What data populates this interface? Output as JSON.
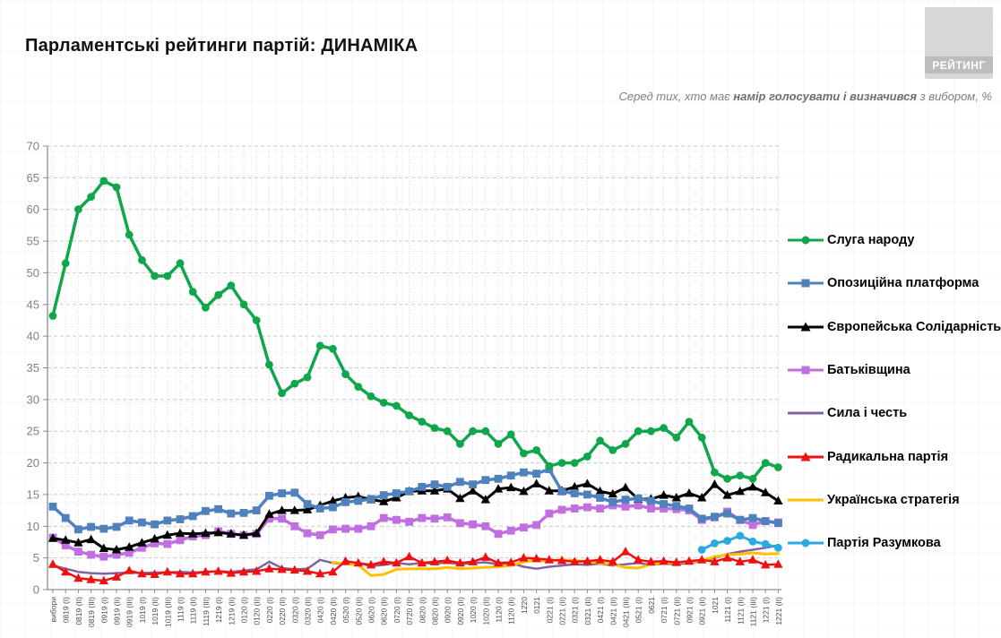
{
  "header": {
    "title": "Парламентські рейтинги партій: ДИНАМІКА",
    "subtitle_prefix": "Серед тих, хто має ",
    "subtitle_bold": "намір голосувати і визначився",
    "subtitle_suffix": " з вибором, %",
    "logo_text": "РЕЙТИНГ"
  },
  "chart_data": {
    "type": "line",
    "title": "Парламентські рейтинги партій: ДИНАМІКА",
    "subtitle": "Серед тих, хто має намір голосувати і визначився з вибором, %",
    "grid": true,
    "legend_position": "right",
    "y_axis": {
      "min": 0,
      "max": 70,
      "step": 5
    },
    "x": [
      "вибори",
      "0819 (I)",
      "0819 (II)",
      "0819 (III)",
      "0919 (I)",
      "0919 (II)",
      "0919 (III)",
      "1019 (I)",
      "1019 (II)",
      "1019 (III)",
      "1119 (I)",
      "1119 (II)",
      "1119 (III)",
      "1219 (I)",
      "1219 (II)",
      "0120 (I)",
      "0120 (II)",
      "0220 (I)",
      "0220 (II)",
      "0320 (I)",
      "0320 (II)",
      "0420 (I)",
      "0420 (II)",
      "0520 (I)",
      "0520 (II)",
      "0620 (I)",
      "0620 (II)",
      "0720 (I)",
      "0720 (II)",
      "0820 (I)",
      "0820 (II)",
      "0920 (I)",
      "0920 (II)",
      "1020 (I)",
      "1020 (II)",
      "1120 (I)",
      "1120 (II)",
      "1220",
      "0121",
      "0221 (I)",
      "0221 (II)",
      "0321 (I)",
      "0321 (II)",
      "0421 (I)",
      "0421 (II)",
      "0421 (III)",
      "0521 (I)",
      "0621",
      "0721 (I)",
      "0721 (II)",
      "0921 (I)",
      "0921 (II)",
      "1021",
      "1121 (I)",
      "1121 (II)",
      "1121 (III)",
      "1221 (I)",
      "1221 (II)"
    ],
    "series": [
      {
        "id": "sluga-narodu",
        "name": "Слуга народу",
        "color": "#0fa64c",
        "marker": "circle",
        "values": [
          43.2,
          51.5,
          60,
          62,
          64.5,
          63.5,
          56,
          52,
          49.5,
          49.5,
          51.5,
          47,
          44.5,
          46.5,
          48,
          45,
          42.5,
          35.5,
          31,
          32.5,
          33.5,
          38.5,
          38,
          34,
          32,
          30.5,
          29.5,
          29,
          27.5,
          26.5,
          25.5,
          25,
          23,
          25,
          25,
          23,
          24.5,
          21.5,
          22,
          19.5,
          20,
          20,
          21,
          23.5,
          22,
          23,
          25,
          25,
          25.5,
          24,
          26.5,
          24,
          18.5,
          17.5,
          18,
          17.5,
          20,
          19.3
        ]
      },
      {
        "id": "opozytsiina-platforma",
        "name": "Опозиційна платформа",
        "color": "#4f81bd",
        "marker": "square",
        "values": [
          13.1,
          11.3,
          9.5,
          9.9,
          9.6,
          9.9,
          10.9,
          10.6,
          10.3,
          10.9,
          11.1,
          11.6,
          12.4,
          12.7,
          12.0,
          12.1,
          12.5,
          14.8,
          15.2,
          15.3,
          13.5,
          12.8,
          13.0,
          13.8,
          14.0,
          14.3,
          14.9,
          15.2,
          15.5,
          16.2,
          16.6,
          16.2,
          17.0,
          16.6,
          17.3,
          17.5,
          18.0,
          18.5,
          18.3,
          19.0,
          15.5,
          15.2,
          15.0,
          14.5,
          13.8,
          14.2,
          14.4,
          14.0,
          13.5,
          13.2,
          12.8,
          11.2,
          11.5,
          12.0,
          11.0,
          11.3,
          10.8,
          10.5
        ]
      },
      {
        "id": "yevropeiska-solidarnist",
        "name": "Європейська Солідарність",
        "color": "#000000",
        "marker": "triangle",
        "values": [
          8.1,
          7.8,
          7.4,
          7.9,
          6.5,
          6.3,
          6.7,
          7.4,
          8.0,
          8.6,
          8.9,
          8.8,
          8.9,
          9.0,
          8.8,
          8.6,
          8.9,
          11.9,
          12.5,
          12.5,
          12.6,
          13.3,
          14.0,
          14.5,
          14.7,
          14.2,
          13.9,
          14.5,
          15.5,
          15.6,
          15.6,
          15.9,
          14.4,
          15.6,
          14.2,
          15.9,
          16.1,
          15.5,
          16.7,
          15.6,
          15.6,
          16.2,
          16.7,
          15.5,
          15.1,
          16.1,
          14.3,
          14.3,
          14.9,
          14.5,
          15.2,
          14.5,
          16.6,
          14.9,
          15.5,
          16.2,
          15.3,
          14.0
        ]
      },
      {
        "id": "batkivshchyna",
        "name": "Батьківщина",
        "color": "#c06ee0",
        "marker": "square",
        "values": [
          8.2,
          7.0,
          6.0,
          5.5,
          5.2,
          5.5,
          5.8,
          6.6,
          7.3,
          7.2,
          7.8,
          8.4,
          8.6,
          9.2,
          8.8,
          8.6,
          8.8,
          11.2,
          11.2,
          10.0,
          8.9,
          8.6,
          9.5,
          9.6,
          9.6,
          10.0,
          11.3,
          11.0,
          10.7,
          11.3,
          11.2,
          11.4,
          10.5,
          10.3,
          10.0,
          8.8,
          9.3,
          9.8,
          10.2,
          12.0,
          12.6,
          12.8,
          13.0,
          12.8,
          13.3,
          13.1,
          13.3,
          12.8,
          12.8,
          12.7,
          12.5,
          11.0,
          11.4,
          12.3,
          11.0,
          10.2,
          10.8,
          10.6
        ]
      },
      {
        "id": "syla-i-chest",
        "name": "Сила і честь",
        "color": "#8064a2",
        "marker": "none",
        "values": [
          3.8,
          3.3,
          2.8,
          2.6,
          2.5,
          2.6,
          2.7,
          2.6,
          2.7,
          2.7,
          2.8,
          2.7,
          2.8,
          2.9,
          2.8,
          3.0,
          3.2,
          4.4,
          3.4,
          3.2,
          3.3,
          4.7,
          4.2,
          4.0,
          4.2,
          3.7,
          3.9,
          4.2,
          4.0,
          4.2,
          4.1,
          4.3,
          4.0,
          4.2,
          4.3,
          4.0,
          4.2,
          3.6,
          3.3,
          3.6,
          3.8,
          4.0,
          3.9,
          4.1,
          3.8,
          4.0,
          4.2,
          3.9,
          4.1,
          4.0,
          4.2,
          4.5,
          5.0,
          5.6,
          6.0,
          6.3,
          6.6,
          7.0
        ]
      },
      {
        "id": "radykalna-partiia",
        "name": "Радикальна партія",
        "color": "#ee1111",
        "marker": "triangle",
        "values": [
          4.0,
          2.8,
          1.8,
          1.6,
          1.4,
          2.0,
          3.0,
          2.5,
          2.4,
          2.8,
          2.5,
          2.5,
          2.8,
          2.9,
          2.6,
          2.8,
          2.9,
          3.3,
          3.2,
          3.1,
          2.9,
          2.5,
          2.8,
          4.5,
          4.2,
          3.9,
          4.4,
          4.2,
          5.2,
          4.2,
          4.4,
          4.6,
          4.2,
          4.4,
          5.1,
          4.2,
          4.3,
          5.0,
          4.9,
          4.7,
          4.6,
          4.4,
          4.5,
          4.7,
          4.4,
          6.0,
          4.7,
          4.4,
          4.5,
          4.3,
          4.5,
          4.7,
          4.4,
          5.0,
          4.4,
          4.7,
          3.9,
          4.0
        ]
      },
      {
        "id": "ukrainska-stratehiia",
        "name": "Українська стратегія",
        "color": "#ffc000",
        "marker": "none",
        "values": [
          null,
          null,
          null,
          null,
          null,
          null,
          null,
          null,
          null,
          null,
          null,
          null,
          null,
          null,
          null,
          null,
          null,
          null,
          null,
          null,
          null,
          null,
          4.3,
          4.1,
          3.9,
          2.2,
          2.4,
          3.2,
          3.3,
          3.3,
          3.3,
          3.5,
          3.3,
          3.4,
          3.5,
          3.6,
          3.8,
          4.4,
          4.6,
          4.5,
          4.7,
          4.6,
          4.4,
          4.2,
          4.0,
          3.5,
          3.4,
          4.0,
          4.2,
          4.3,
          4.4,
          4.6,
          5.2,
          5.5,
          5.6,
          5.8,
          5.6,
          5.7
        ]
      },
      {
        "id": "partiia-razumkova",
        "name": "Партія Разумкова",
        "color": "#29abe2",
        "marker": "circle",
        "values": [
          null,
          null,
          null,
          null,
          null,
          null,
          null,
          null,
          null,
          null,
          null,
          null,
          null,
          null,
          null,
          null,
          null,
          null,
          null,
          null,
          null,
          null,
          null,
          null,
          null,
          null,
          null,
          null,
          null,
          null,
          null,
          null,
          null,
          null,
          null,
          null,
          null,
          null,
          null,
          null,
          null,
          null,
          null,
          null,
          null,
          null,
          null,
          null,
          null,
          null,
          null,
          6.3,
          7.3,
          7.7,
          8.5,
          7.6,
          7.2,
          6.6
        ]
      }
    ]
  }
}
